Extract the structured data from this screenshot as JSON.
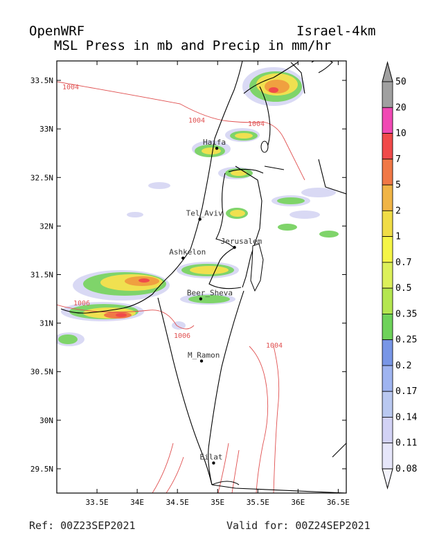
{
  "header": {
    "model": "OpenWRF",
    "domain": "Israel-4km",
    "title": "MSL Press in mb and Precip in mm/hr"
  },
  "footer": {
    "ref": "Ref: 00Z23SEP2021",
    "valid": "Valid for: 00Z24SEP2021"
  },
  "axes": {
    "lon_ticks": [
      "33.5E",
      "34E",
      "34.5E",
      "35E",
      "35.5E",
      "36E",
      "36.5E"
    ],
    "lat_ticks": [
      "33.5N",
      "33N",
      "32.5N",
      "32N",
      "31.5N",
      "31N",
      "30.5N",
      "30N",
      "29.5N"
    ],
    "lon_range": [
      33.0,
      36.6
    ],
    "lat_range": [
      29.25,
      33.7
    ]
  },
  "colorbar": {
    "levels": [
      "50",
      "20",
      "10",
      "7",
      "5",
      "2",
      "1",
      "0.7",
      "0.5",
      "0.35",
      "0.25",
      "0.2",
      "0.17",
      "0.14",
      "0.11",
      "0.08"
    ],
    "colors": [
      "#a0a0a0",
      "#f04ab4",
      "#f04a4a",
      "#f07846",
      "#f0b446",
      "#f0dc46",
      "#f5f546",
      "#dcf05a",
      "#b4e650",
      "#6ed25a",
      "#7896e6",
      "#9fb4f0",
      "#b9c8f0",
      "#d2d2f5",
      "#e6e6fa"
    ]
  },
  "cities": [
    {
      "name": "Haifa",
      "lon": 34.99,
      "lat": 32.8
    },
    {
      "name": "Tel_Aviv",
      "lon": 34.78,
      "lat": 32.07
    },
    {
      "name": "Jerusalem",
      "lon": 35.21,
      "lat": 31.78
    },
    {
      "name": "Ashkelon",
      "lon": 34.57,
      "lat": 31.67
    },
    {
      "name": "Beer_Sheva",
      "lon": 34.79,
      "lat": 31.25
    },
    {
      "name": "M_Ramon",
      "lon": 34.8,
      "lat": 30.61
    },
    {
      "name": "Eilat",
      "lon": 34.95,
      "lat": 29.56
    }
  ],
  "isobars": [
    "1004",
    "1004",
    "1004",
    "1006",
    "1006",
    "1004"
  ],
  "colors": {
    "isobar": "#e05050",
    "border": "#000000"
  }
}
